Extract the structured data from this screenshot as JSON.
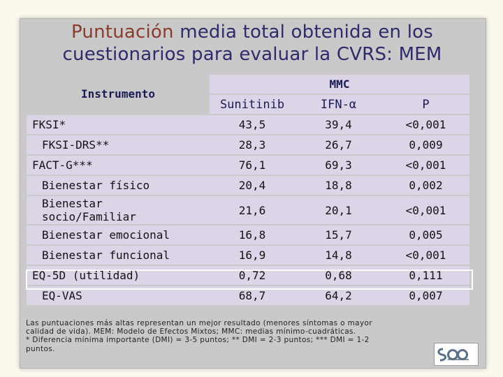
{
  "title": {
    "line1_colored": "Puntuación",
    "line1_rest": "media total obtenida en los",
    "line2": "cuestionarios para evaluar la CVRS: MEM"
  },
  "table": {
    "instrument_header": "Instrumento",
    "group_header": "MMC",
    "columns": [
      "Sunitinib",
      "IFN-α",
      "P"
    ],
    "rows": [
      {
        "label": "FKSI*",
        "sunitinib": "43,5",
        "ifn": "39,4",
        "p": "<0,001"
      },
      {
        "label": "FKSI-DRS**",
        "sunitinib": "28,3",
        "ifn": "26,7",
        "p": "0,009"
      },
      {
        "label": "FACT-G***",
        "sunitinib": "76,1",
        "ifn": "69,3",
        "p": "<0,001"
      },
      {
        "label": "Bienestar físico",
        "sunitinib": "20,4",
        "ifn": "18,8",
        "p": "0,002"
      },
      {
        "label_line1": "Bienestar",
        "label_line2": "socio/Familiar",
        "sunitinib": "21,6",
        "ifn": "20,1",
        "p": "<0,001"
      },
      {
        "label": "Bienestar emocional",
        "sunitinib": "16,8",
        "ifn": "15,7",
        "p": "0,005"
      },
      {
        "label": "Bienestar funcional",
        "sunitinib": "16,9",
        "ifn": "14,8",
        "p": "<0,001"
      },
      {
        "label": "EQ-5D (utilidad)",
        "sunitinib": "0,72",
        "ifn": "0,68",
        "p": "0,111"
      },
      {
        "label": "EQ-VAS",
        "sunitinib": "68,7",
        "ifn": "64,2",
        "p": "0,007"
      }
    ]
  },
  "footnote": {
    "line1": "Las puntuaciones más altas representan un mejor resultado (menores síntomas o mayor",
    "line2": "calidad de vida). MEM: Modelo de Efectos Mixtos; MMC: medias mínimo-cuadráticas.",
    "line3": "* Diferencia mínima importante (DMI) = 3-5 puntos; ** DMI = 2-3 puntos; *** DMI = 1-2",
    "line4": "puntos."
  },
  "logo": {
    "icon": "seom-logo",
    "text": "SEOM"
  }
}
